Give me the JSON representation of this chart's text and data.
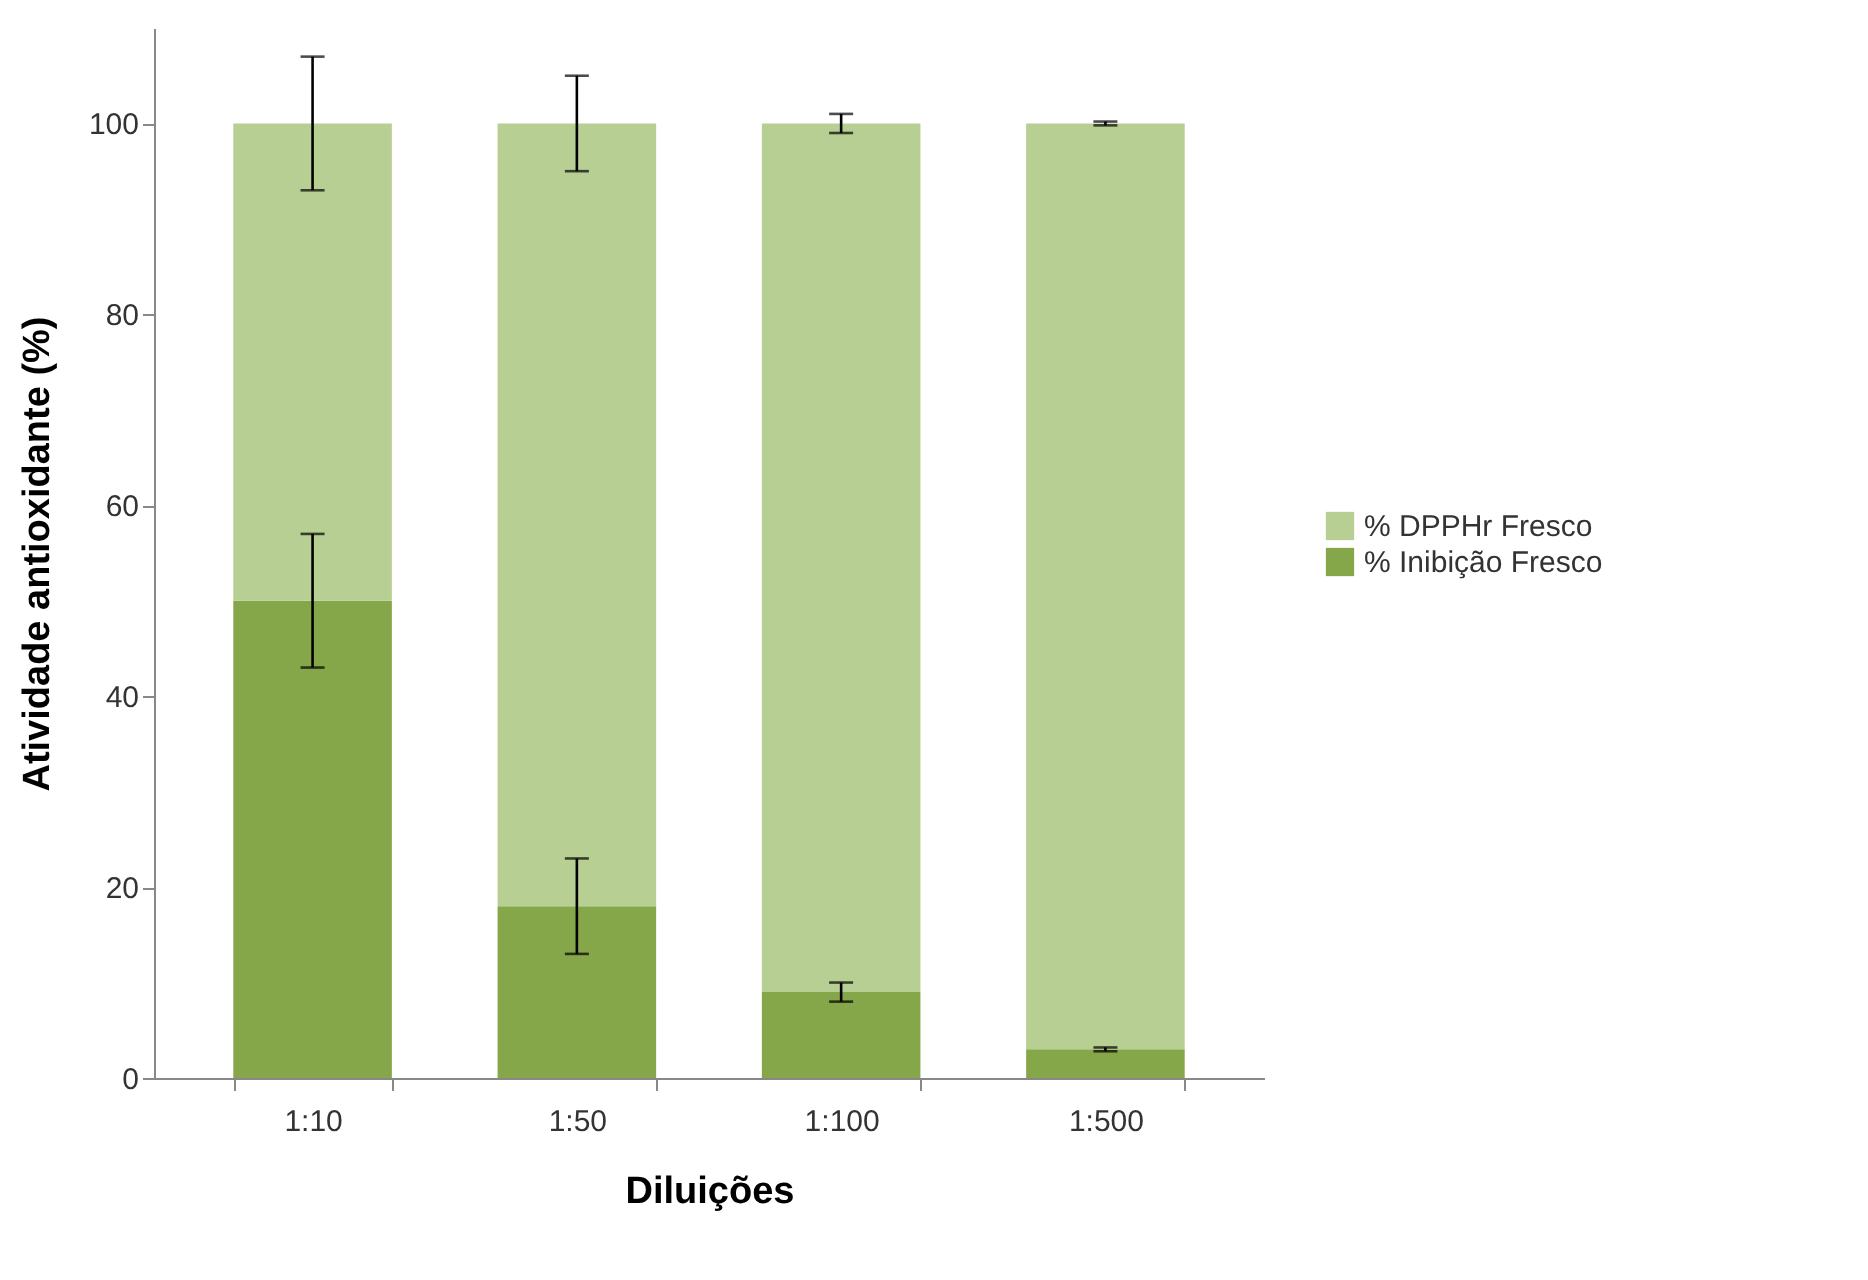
{
  "chart_data": {
    "type": "bar",
    "stacked": true,
    "xlabel": "Diluições",
    "ylabel": "Atividade antioxidante (%)",
    "categories": [
      "1:10",
      "1:50",
      "1:100",
      "1:500"
    ],
    "series": [
      {
        "name": "% Inibição Fresco",
        "color": "#86a64a",
        "values": [
          50,
          18,
          9,
          3
        ],
        "errors": [
          7,
          5,
          1,
          0.2
        ]
      },
      {
        "name": "% DPPHr Fresco",
        "color": "#b7cf93",
        "values": [
          50,
          82,
          91,
          97
        ],
        "errors": [
          7,
          5,
          1,
          0.2
        ]
      }
    ],
    "ylim": [
      0,
      110
    ],
    "yticks": [
      0,
      20,
      40,
      60,
      80,
      100
    ],
    "legend": "right"
  }
}
